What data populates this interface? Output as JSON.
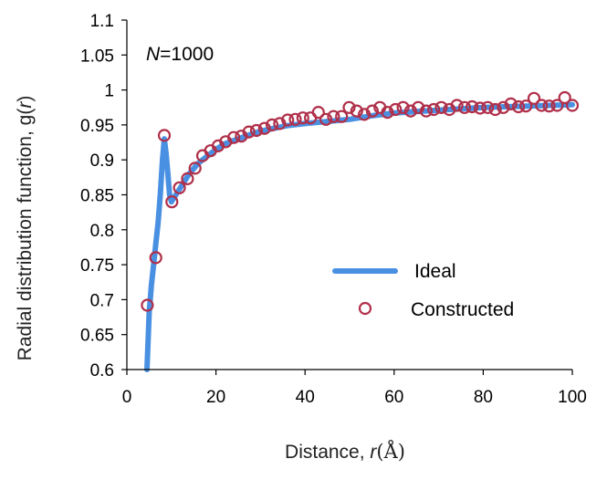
{
  "chart_data": {
    "type": "line",
    "title": "",
    "annotation": {
      "italic": "N",
      "text": "=1000"
    },
    "xlabel": {
      "prefix": "Distance, ",
      "italic": "r",
      "suffix": "(Å)"
    },
    "ylabel": {
      "prefix": "Radial distribution function, g(",
      "italic": "r",
      "suffix": ")"
    },
    "xlim": [
      0,
      100
    ],
    "ylim": [
      0.6,
      1.1
    ],
    "xticks": [
      "0",
      "20",
      "40",
      "60",
      "80",
      "100"
    ],
    "yticks": [
      "0.6",
      "0.65",
      "0.7",
      "0.75",
      "0.8",
      "0.85",
      "0.9",
      "0.95",
      "1",
      "1.05",
      "1.1"
    ],
    "grid": false,
    "legend_position": "center-right",
    "colors": {
      "ideal": "#4a90e2",
      "constructed": "#b0304a"
    },
    "series": [
      {
        "name": "Ideal",
        "style": "line",
        "x": [
          4.5,
          5.0,
          5.5,
          6.0,
          6.5,
          7.0,
          7.5,
          8.0,
          8.4,
          8.8,
          9.2,
          9.6,
          10.0,
          11,
          12,
          13,
          14,
          16,
          18,
          20,
          22,
          25,
          28,
          30,
          33,
          36,
          40,
          45,
          50,
          55,
          60,
          65,
          70,
          75,
          80,
          85,
          90,
          95,
          100
        ],
        "values": [
          0.6,
          0.68,
          0.72,
          0.75,
          0.78,
          0.81,
          0.85,
          0.9,
          0.93,
          0.91,
          0.88,
          0.85,
          0.84,
          0.85,
          0.86,
          0.87,
          0.88,
          0.895,
          0.905,
          0.915,
          0.923,
          0.93,
          0.937,
          0.941,
          0.945,
          0.949,
          0.952,
          0.955,
          0.958,
          0.963,
          0.967,
          0.969,
          0.971,
          0.973,
          0.975,
          0.976,
          0.977,
          0.978,
          0.979
        ]
      },
      {
        "name": "Constructed",
        "style": "scatter",
        "x": [
          4.6,
          6.5,
          8.4,
          10.1,
          11.8,
          13.6,
          15.3,
          17.0,
          18.8,
          20.5,
          22.2,
          24.0,
          25.7,
          27.4,
          29.1,
          30.9,
          32.6,
          34.3,
          36.1,
          37.8,
          39.5,
          41.2,
          43.0,
          44.7,
          46.4,
          48.2,
          49.9,
          51.6,
          53.3,
          55.1,
          56.8,
          58.5,
          60.3,
          62.0,
          63.7,
          65.4,
          67.2,
          68.9,
          70.6,
          72.4,
          74.1,
          75.8,
          77.5,
          79.3,
          81.0,
          82.7,
          84.5,
          86.2,
          87.9,
          89.6,
          91.4,
          93.1,
          94.8,
          96.6,
          98.3,
          100.0
        ],
        "values": [
          0.692,
          0.76,
          0.935,
          0.84,
          0.86,
          0.873,
          0.888,
          0.906,
          0.913,
          0.92,
          0.926,
          0.932,
          0.934,
          0.94,
          0.942,
          0.945,
          0.95,
          0.952,
          0.957,
          0.958,
          0.96,
          0.96,
          0.968,
          0.958,
          0.962,
          0.962,
          0.975,
          0.97,
          0.965,
          0.97,
          0.975,
          0.968,
          0.972,
          0.975,
          0.97,
          0.975,
          0.97,
          0.972,
          0.975,
          0.972,
          0.978,
          0.975,
          0.976,
          0.974,
          0.975,
          0.972,
          0.975,
          0.98,
          0.976,
          0.977,
          0.988,
          0.978,
          0.977,
          0.978,
          0.989,
          0.978
        ]
      }
    ]
  }
}
